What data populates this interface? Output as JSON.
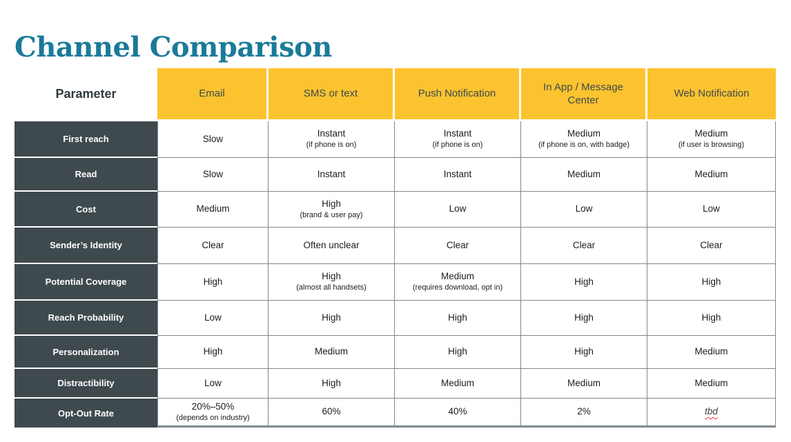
{
  "title": "Channel Comparison",
  "table": {
    "corner_header": "Parameter",
    "columns": [
      "Email",
      "SMS or text",
      "Push Notification",
      "In App / Message Center",
      "Web Notification"
    ],
    "rows": [
      {
        "param": "First reach",
        "cells": [
          {
            "v": "Slow"
          },
          {
            "v": "Instant",
            "note": "(if phone is on)"
          },
          {
            "v": "Instant",
            "note": "(if phone is on)"
          },
          {
            "v": "Medium",
            "note": "(if phone is on, with badge)"
          },
          {
            "v": "Medium",
            "note": "(if user is browsing)"
          }
        ]
      },
      {
        "param": "Read",
        "cells": [
          {
            "v": "Slow"
          },
          {
            "v": "Instant"
          },
          {
            "v": "Instant"
          },
          {
            "v": "Medium"
          },
          {
            "v": "Medium"
          }
        ]
      },
      {
        "param": "Cost",
        "cells": [
          {
            "v": "Medium"
          },
          {
            "v": "High",
            "note": "(brand & user pay)"
          },
          {
            "v": "Low"
          },
          {
            "v": "Low"
          },
          {
            "v": "Low"
          }
        ]
      },
      {
        "param": "Sender’s Identity",
        "cells": [
          {
            "v": "Clear"
          },
          {
            "v": "Often unclear"
          },
          {
            "v": "Clear"
          },
          {
            "v": "Clear"
          },
          {
            "v": "Clear"
          }
        ]
      },
      {
        "param": "Potential Coverage",
        "cells": [
          {
            "v": "High"
          },
          {
            "v": "High",
            "note": "(almost all handsets)"
          },
          {
            "v": "Medium",
            "note": "(requires download, opt in)"
          },
          {
            "v": "High"
          },
          {
            "v": "High"
          }
        ]
      },
      {
        "param": "Reach Probability",
        "cells": [
          {
            "v": "Low"
          },
          {
            "v": "High"
          },
          {
            "v": "High"
          },
          {
            "v": "High"
          },
          {
            "v": "High"
          }
        ]
      },
      {
        "param": "Personalization",
        "cells": [
          {
            "v": "High"
          },
          {
            "v": "Medium"
          },
          {
            "v": "High"
          },
          {
            "v": "High"
          },
          {
            "v": "Medium"
          }
        ]
      },
      {
        "param": "Distractibility",
        "cells": [
          {
            "v": "Low"
          },
          {
            "v": "High"
          },
          {
            "v": "Medium"
          },
          {
            "v": "Medium"
          },
          {
            "v": "Medium"
          }
        ]
      },
      {
        "param": "Opt-Out Rate",
        "cells": [
          {
            "v": "20%–50%",
            "note": "(depends on industry)"
          },
          {
            "v": "60%"
          },
          {
            "v": "40%"
          },
          {
            "v": "2%"
          },
          {
            "v": "tbd",
            "style": "tbd"
          }
        ]
      }
    ]
  },
  "colors": {
    "title_teal": "#1B7A99",
    "header_yellow": "#FCC330",
    "param_slate": "#3F4A4E",
    "grid_border": "#7E898D",
    "spellcheck_red": "#E53935"
  }
}
